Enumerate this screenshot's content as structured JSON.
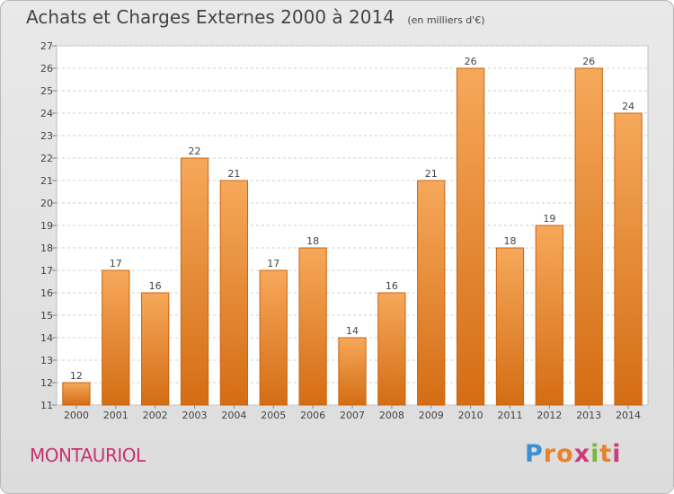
{
  "header": {
    "title": "Achats et Charges Externes 2000 à 2014",
    "subtitle": "(en milliers d'€)"
  },
  "footer": {
    "town": "MONTAURIOL",
    "logo": {
      "letters": [
        "P",
        "r",
        "o",
        "x",
        "i",
        "t",
        "i"
      ],
      "colors": [
        "#3a90d0",
        "#e8832a",
        "#e8832a",
        "#d03a7a",
        "#7ab83a",
        "#e8832a",
        "#d03a7a"
      ]
    }
  },
  "colors": {
    "bar_light": "#f6a85a",
    "bar_dark": "#d46d14",
    "bar_border": "#c96410",
    "plot_bg": "#ffffff",
    "grid": "#cfcfcf"
  },
  "chart_data": {
    "type": "bar",
    "title": "Achats et Charges Externes 2000 à 2014",
    "subtitle": "(en milliers d'€)",
    "categories": [
      "2000",
      "2001",
      "2002",
      "2003",
      "2004",
      "2005",
      "2006",
      "2007",
      "2008",
      "2009",
      "2010",
      "2011",
      "2012",
      "2013",
      "2014"
    ],
    "values": [
      12,
      17,
      16,
      22,
      21,
      17,
      18,
      14,
      16,
      21,
      26,
      18,
      19,
      26,
      24
    ],
    "ylim": [
      11,
      27
    ],
    "yticks": [
      11,
      12,
      13,
      14,
      15,
      16,
      17,
      18,
      19,
      20,
      21,
      22,
      23,
      24,
      25,
      26,
      27
    ],
    "grid": true,
    "xlabel": "",
    "ylabel": ""
  }
}
